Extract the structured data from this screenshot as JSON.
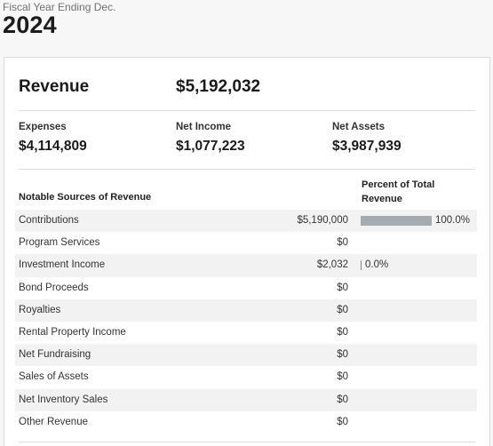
{
  "header": {
    "fiscal_label": "Fiscal Year Ending Dec.",
    "year": "2024"
  },
  "summary": {
    "revenue_label": "Revenue",
    "revenue_value": "$5,192,032",
    "expenses_label": "Expenses",
    "expenses_value": "$4,114,809",
    "net_income_label": "Net Income",
    "net_income_value": "$1,077,223",
    "net_assets_label": "Net Assets",
    "net_assets_value": "$3,987,939"
  },
  "table": {
    "sources_header": "Notable Sources of Revenue",
    "percent_header": "Percent of Total Revenue",
    "rows": [
      {
        "name": "Contributions",
        "amount": "$5,190,000",
        "percent": "100.0%",
        "fraction": 1.0
      },
      {
        "name": "Program Services",
        "amount": "$0",
        "percent": "",
        "fraction": 0
      },
      {
        "name": "Investment Income",
        "amount": "$2,032",
        "percent": "0.0%",
        "fraction": 0.0
      },
      {
        "name": "Bond Proceeds",
        "amount": "$0",
        "percent": "",
        "fraction": 0
      },
      {
        "name": "Royalties",
        "amount": "$0",
        "percent": "",
        "fraction": 0
      },
      {
        "name": "Rental Property Income",
        "amount": "$0",
        "percent": "",
        "fraction": 0
      },
      {
        "name": "Net Fundraising",
        "amount": "$0",
        "percent": "",
        "fraction": 0
      },
      {
        "name": "Sales of Assets",
        "amount": "$0",
        "percent": "",
        "fraction": 0
      },
      {
        "name": "Net Inventory Sales",
        "amount": "$0",
        "percent": "",
        "fraction": 0
      },
      {
        "name": "Other Revenue",
        "amount": "$0",
        "percent": "",
        "fraction": 0
      }
    ]
  },
  "colors": {
    "bar": "#a4acb2",
    "row_shade": "#f2f2f2"
  }
}
